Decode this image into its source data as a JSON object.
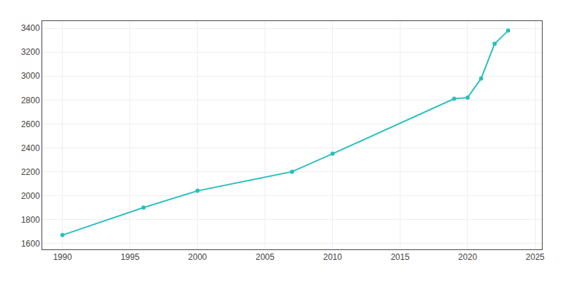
{
  "chart_data": {
    "type": "line",
    "x": [
      1990,
      1996,
      2000,
      2007,
      2010,
      2019,
      2020,
      2021,
      2022,
      2023
    ],
    "values": [
      1670,
      1900,
      2040,
      2200,
      2350,
      2810,
      2820,
      2980,
      3270,
      3380
    ],
    "color": "#2abfbf",
    "marker": "circle",
    "line_style": "solid",
    "xlim": [
      1988.5,
      2025.5
    ],
    "ylim": [
      1550,
      3460
    ],
    "xticks": [
      1990,
      1995,
      2000,
      2005,
      2010,
      2015,
      2020,
      2025
    ],
    "yticks": [
      1600,
      1800,
      2000,
      2200,
      2400,
      2600,
      2800,
      3000,
      3200,
      3400
    ],
    "grid": true
  }
}
